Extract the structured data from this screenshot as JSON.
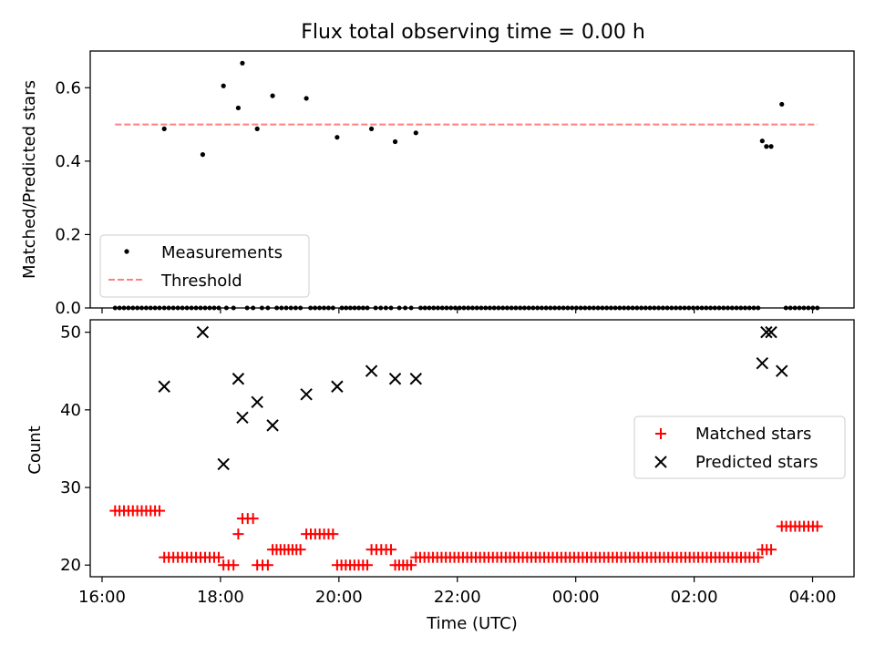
{
  "figure": {
    "title": "Flux total observing time = 0.00 h"
  },
  "chart_data": [
    {
      "type": "scatter",
      "ylabel": "Matched/Predicted stars",
      "xlim": [
        15.8,
        28.7
      ],
      "ylim": [
        0.0,
        0.7
      ],
      "yticks": [
        0.0,
        0.2,
        0.4,
        0.6
      ],
      "ytick_labels": [
        "0.0",
        "0.2",
        "0.4",
        "0.6"
      ],
      "xticks": [
        16,
        18,
        20,
        22,
        24,
        26,
        28
      ],
      "legend": {
        "placement": "lower-left",
        "entries": [
          "Measurements",
          "Threshold"
        ]
      },
      "threshold": {
        "name": "Threshold",
        "value": 0.5,
        "x": [
          16.22,
          28.08
        ],
        "color": "#ff7f7f"
      },
      "measurements": {
        "name": "Measurements",
        "color": "#000000",
        "x": [
          17.05,
          17.7,
          18.05,
          18.3,
          18.37,
          18.62,
          18.88,
          19.45,
          19.97,
          20.55,
          20.95,
          21.3,
          27.15,
          27.22,
          27.3,
          27.48
        ],
        "y": [
          0.488,
          0.418,
          0.605,
          0.545,
          0.667,
          0.488,
          0.578,
          0.571,
          0.465,
          0.488,
          0.453,
          0.477,
          0.455,
          0.44,
          0.44,
          0.555
        ]
      },
      "zeros": {
        "groups": [
          [
            16.22,
            16.97,
            11
          ],
          [
            17.05,
            17.97,
            13
          ],
          [
            18.1,
            18.22,
            2
          ],
          [
            18.45,
            18.55,
            2
          ],
          [
            18.7,
            18.8,
            2
          ],
          [
            18.95,
            19.35,
            6
          ],
          [
            19.52,
            19.9,
            6
          ],
          [
            20.05,
            20.48,
            7
          ],
          [
            20.62,
            20.88,
            4
          ],
          [
            21.02,
            21.22,
            3
          ],
          [
            21.38,
            27.08,
            79
          ],
          [
            27.55,
            28.08,
            8
          ]
        ]
      }
    },
    {
      "type": "scatter",
      "ylabel": "Count",
      "xlabel": "Time (UTC)",
      "xlim": [
        15.8,
        28.7
      ],
      "ylim": [
        18.5,
        51.6
      ],
      "yticks": [
        20,
        30,
        40,
        50
      ],
      "ytick_labels": [
        "20",
        "30",
        "40",
        "50"
      ],
      "xticks": [
        16,
        18,
        20,
        22,
        24,
        26,
        28
      ],
      "xtick_labels": [
        "16:00",
        "18:00",
        "20:00",
        "22:00",
        "00:00",
        "02:00",
        "04:00"
      ],
      "legend": {
        "placement": "center-right",
        "entries": [
          "Matched stars",
          "Predicted stars"
        ]
      },
      "predicted": {
        "name": "Predicted stars",
        "color": "#000000",
        "x": [
          17.05,
          17.7,
          18.05,
          18.3,
          18.37,
          18.62,
          18.88,
          19.45,
          19.97,
          20.55,
          20.95,
          21.3,
          27.15,
          27.22,
          27.3,
          27.48
        ],
        "y": [
          43,
          50,
          33,
          44,
          39,
          41,
          38,
          42,
          43,
          45,
          44,
          44,
          46,
          50,
          50,
          45
        ]
      },
      "matched": {
        "name": "Matched stars",
        "color": "#ff0000",
        "groups": [
          [
            16.22,
            16.97,
            11,
            27
          ],
          [
            17.05,
            17.97,
            13,
            21
          ],
          [
            18.05,
            18.22,
            3,
            20
          ],
          [
            18.3,
            18.3,
            1,
            24
          ],
          [
            18.37,
            18.55,
            3,
            26
          ],
          [
            18.62,
            18.8,
            3,
            20
          ],
          [
            18.88,
            19.35,
            8,
            22
          ],
          [
            19.45,
            19.9,
            7,
            24
          ],
          [
            19.97,
            20.48,
            8,
            20
          ],
          [
            20.55,
            20.88,
            5,
            22
          ],
          [
            20.95,
            21.22,
            5,
            20
          ],
          [
            21.3,
            27.08,
            81,
            21
          ],
          [
            27.15,
            27.3,
            3,
            22
          ],
          [
            27.48,
            28.08,
            9,
            25
          ]
        ]
      }
    }
  ]
}
